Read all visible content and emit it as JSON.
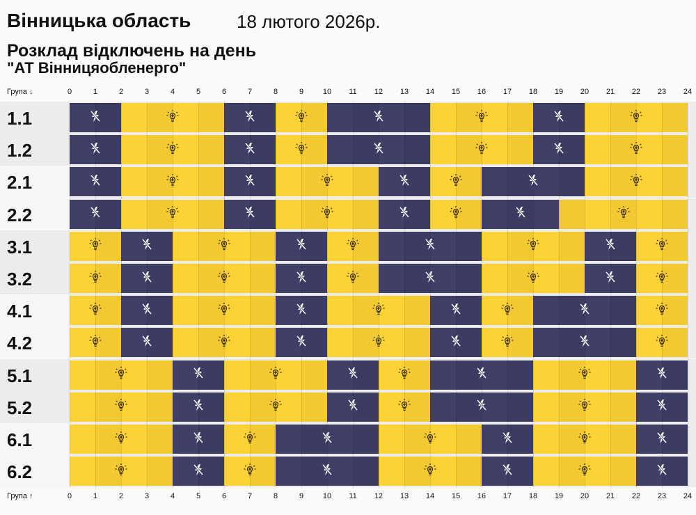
{
  "title": "Вінницька область",
  "date": "18 лютого 2026р.",
  "subtitle": "Розклад відключень на день",
  "company": "\"АТ Вінницяобленерго\"",
  "axis_top_label": "Група ↓",
  "axis_bottom_label": "Група ↑",
  "colors": {
    "off": "#3f3f67",
    "on": "#fdd235"
  },
  "chart_data": {
    "type": "timeline",
    "x_ticks": [
      0,
      1,
      2,
      3,
      4,
      5,
      6,
      7,
      8,
      9,
      10,
      11,
      12,
      13,
      14,
      15,
      16,
      17,
      18,
      19,
      20,
      21,
      22,
      23,
      24
    ],
    "xlim": [
      0,
      24
    ],
    "legend": {
      "off": "power-off-icon",
      "on": "lightbulb-icon"
    },
    "groups": [
      {
        "name": "1.1",
        "segments": [
          [
            0,
            2,
            "off"
          ],
          [
            2,
            6,
            "on"
          ],
          [
            6,
            8,
            "off"
          ],
          [
            8,
            10,
            "on"
          ],
          [
            10,
            14,
            "off"
          ],
          [
            14,
            18,
            "on"
          ],
          [
            18,
            20,
            "off"
          ],
          [
            20,
            24,
            "on"
          ]
        ]
      },
      {
        "name": "1.2",
        "segments": [
          [
            0,
            2,
            "off"
          ],
          [
            2,
            6,
            "on"
          ],
          [
            6,
            8,
            "off"
          ],
          [
            8,
            10,
            "on"
          ],
          [
            10,
            14,
            "off"
          ],
          [
            14,
            18,
            "on"
          ],
          [
            18,
            20,
            "off"
          ],
          [
            20,
            24,
            "on"
          ]
        ]
      },
      {
        "name": "2.1",
        "segments": [
          [
            0,
            2,
            "off"
          ],
          [
            2,
            6,
            "on"
          ],
          [
            6,
            8,
            "off"
          ],
          [
            8,
            12,
            "on"
          ],
          [
            12,
            14,
            "off"
          ],
          [
            14,
            16,
            "on"
          ],
          [
            16,
            20,
            "off"
          ],
          [
            20,
            24,
            "on"
          ]
        ]
      },
      {
        "name": "2.2",
        "segments": [
          [
            0,
            2,
            "off"
          ],
          [
            2,
            6,
            "on"
          ],
          [
            6,
            8,
            "off"
          ],
          [
            8,
            12,
            "on"
          ],
          [
            12,
            14,
            "off"
          ],
          [
            14,
            16,
            "on"
          ],
          [
            16,
            19,
            "off"
          ],
          [
            19,
            24,
            "on"
          ]
        ]
      },
      {
        "name": "3.1",
        "segments": [
          [
            0,
            2,
            "on"
          ],
          [
            2,
            4,
            "off"
          ],
          [
            4,
            8,
            "on"
          ],
          [
            8,
            10,
            "off"
          ],
          [
            10,
            12,
            "on"
          ],
          [
            12,
            16,
            "off"
          ],
          [
            16,
            20,
            "on"
          ],
          [
            20,
            22,
            "off"
          ],
          [
            22,
            24,
            "on"
          ]
        ]
      },
      {
        "name": "3.2",
        "segments": [
          [
            0,
            2,
            "on"
          ],
          [
            2,
            4,
            "off"
          ],
          [
            4,
            8,
            "on"
          ],
          [
            8,
            10,
            "off"
          ],
          [
            10,
            12,
            "on"
          ],
          [
            12,
            16,
            "off"
          ],
          [
            16,
            20,
            "on"
          ],
          [
            20,
            22,
            "off"
          ],
          [
            22,
            24,
            "on"
          ]
        ]
      },
      {
        "name": "4.1",
        "segments": [
          [
            0,
            2,
            "on"
          ],
          [
            2,
            4,
            "off"
          ],
          [
            4,
            8,
            "on"
          ],
          [
            8,
            10,
            "off"
          ],
          [
            10,
            14,
            "on"
          ],
          [
            14,
            16,
            "off"
          ],
          [
            16,
            18,
            "on"
          ],
          [
            18,
            22,
            "off"
          ],
          [
            22,
            24,
            "on"
          ]
        ]
      },
      {
        "name": "4.2",
        "segments": [
          [
            0,
            2,
            "on"
          ],
          [
            2,
            4,
            "off"
          ],
          [
            4,
            8,
            "on"
          ],
          [
            8,
            10,
            "off"
          ],
          [
            10,
            14,
            "on"
          ],
          [
            14,
            16,
            "off"
          ],
          [
            16,
            18,
            "on"
          ],
          [
            18,
            22,
            "off"
          ],
          [
            22,
            24,
            "on"
          ]
        ]
      },
      {
        "name": "5.1",
        "segments": [
          [
            0,
            4,
            "on"
          ],
          [
            4,
            6,
            "off"
          ],
          [
            6,
            10,
            "on"
          ],
          [
            10,
            12,
            "off"
          ],
          [
            12,
            14,
            "on"
          ],
          [
            14,
            18,
            "off"
          ],
          [
            18,
            22,
            "on"
          ],
          [
            22,
            24,
            "off"
          ]
        ]
      },
      {
        "name": "5.2",
        "segments": [
          [
            0,
            4,
            "on"
          ],
          [
            4,
            6,
            "off"
          ],
          [
            6,
            10,
            "on"
          ],
          [
            10,
            12,
            "off"
          ],
          [
            12,
            14,
            "on"
          ],
          [
            14,
            18,
            "off"
          ],
          [
            18,
            22,
            "on"
          ],
          [
            22,
            24,
            "off"
          ]
        ]
      },
      {
        "name": "6.1",
        "segments": [
          [
            0,
            4,
            "on"
          ],
          [
            4,
            6,
            "off"
          ],
          [
            6,
            8,
            "on"
          ],
          [
            8,
            12,
            "off"
          ],
          [
            12,
            16,
            "on"
          ],
          [
            16,
            18,
            "off"
          ],
          [
            18,
            22,
            "on"
          ],
          [
            22,
            24,
            "off"
          ]
        ]
      },
      {
        "name": "6.2",
        "segments": [
          [
            0,
            4,
            "on"
          ],
          [
            4,
            6,
            "off"
          ],
          [
            6,
            8,
            "on"
          ],
          [
            8,
            12,
            "off"
          ],
          [
            12,
            16,
            "on"
          ],
          [
            16,
            18,
            "off"
          ],
          [
            18,
            22,
            "on"
          ],
          [
            22,
            24,
            "off"
          ]
        ]
      }
    ]
  }
}
